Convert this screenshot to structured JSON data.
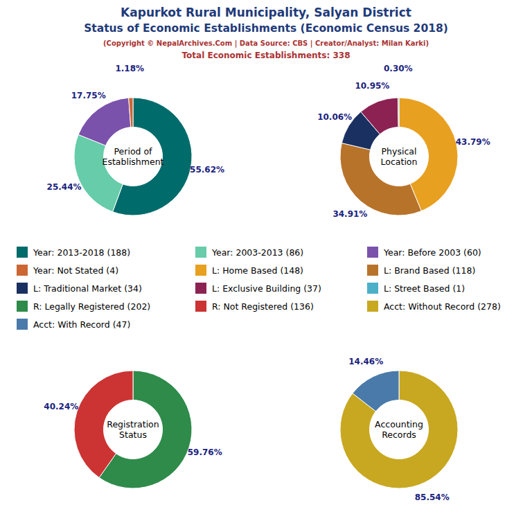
{
  "title": [
    "Kapurkot Rural Municipality, Salyan District",
    "Status of Economic Establishments (Economic Census 2018)"
  ],
  "subtitle": [
    "(Copyright © NepalArchives.Com | Data Source: CBS | Creator/Analyst: Milan Karki)",
    "Total Economic Establishments: 338"
  ],
  "chart_data": [
    {
      "type": "donut",
      "title": "Period of\nEstablishment",
      "categories": [
        "Year: 2013-2018 (188)",
        "Year: 2003-2013 (86)",
        "Year: Before 2003 (60)",
        "Year: Not Stated (4)"
      ],
      "values": [
        55.62,
        25.44,
        17.75,
        1.18
      ],
      "value_labels": [
        "55.62%",
        "25.44%",
        "17.75%",
        "1.18%"
      ],
      "colors": [
        "#006B6B",
        "#66CCAA",
        "#7B52AB",
        "#CC6633"
      ],
      "data_labels": true
    },
    {
      "type": "donut",
      "title": "Physical\nLocation",
      "categories": [
        "L: Home Based (148)",
        "L: Brand Based (118)",
        "L: Traditional Market (34)",
        "L: Exclusive Building (37)",
        "L: Street Based (1)"
      ],
      "values": [
        43.79,
        34.91,
        10.06,
        10.95,
        0.3
      ],
      "value_labels": [
        "43.79%",
        "34.91%",
        "10.06%",
        "10.95%",
        "0.30%"
      ],
      "colors": [
        "#E8A020",
        "#B8732A",
        "#1A3060",
        "#8B2252",
        "#4BB0C8"
      ],
      "data_labels": true
    },
    {
      "type": "donut",
      "title": "Registration\nStatus",
      "categories": [
        "R: Legally Registered (202)",
        "R: Not Registered (136)"
      ],
      "values": [
        59.76,
        40.24
      ],
      "value_labels": [
        "59.76%",
        "40.24%"
      ],
      "colors": [
        "#2E8B4A",
        "#CC3333"
      ],
      "data_labels": true
    },
    {
      "type": "donut",
      "title": "Accounting\nRecords",
      "categories": [
        "Acct: Without Record (278)",
        "Acct: With Record (47)"
      ],
      "values": [
        85.54,
        14.46
      ],
      "value_labels": [
        "85.54%",
        "14.46%"
      ],
      "colors": [
        "#C8A820",
        "#4A7AAA"
      ],
      "data_labels": true
    }
  ]
}
